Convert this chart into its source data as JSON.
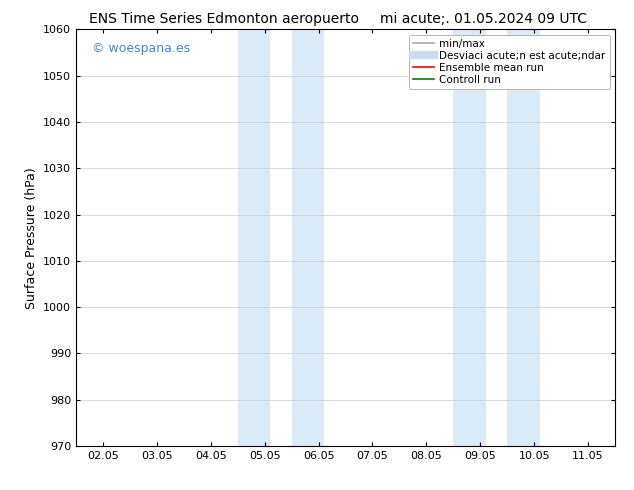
{
  "title_left": "ENS Time Series Edmonton aeropuerto",
  "title_right": "mi acute;. 01.05.2024 09 UTC",
  "ylabel": "Surface Pressure (hPa)",
  "ylim": [
    970,
    1060
  ],
  "yticks": [
    970,
    980,
    990,
    1000,
    1010,
    1020,
    1030,
    1040,
    1050,
    1060
  ],
  "xtick_labels": [
    "02.05",
    "03.05",
    "04.05",
    "05.05",
    "06.05",
    "07.05",
    "08.05",
    "09.05",
    "10.05",
    "11.05"
  ],
  "xlim": [
    0,
    9
  ],
  "shaded_bands": [
    {
      "x_start": 2.5,
      "x_end": 3.1,
      "color": "#daeaf7"
    },
    {
      "x_start": 3.5,
      "x_end": 4.1,
      "color": "#daeaf7"
    },
    {
      "x_start": 6.5,
      "x_end": 7.1,
      "color": "#daeaf7"
    },
    {
      "x_start": 7.5,
      "x_end": 8.1,
      "color": "#daeaf7"
    }
  ],
  "watermark_text": "© woespana.es",
  "watermark_color": "#4488cc",
  "background_color": "#ffffff",
  "title_fontsize": 10,
  "axis_label_fontsize": 9,
  "tick_fontsize": 8,
  "legend_fontsize": 7.5
}
